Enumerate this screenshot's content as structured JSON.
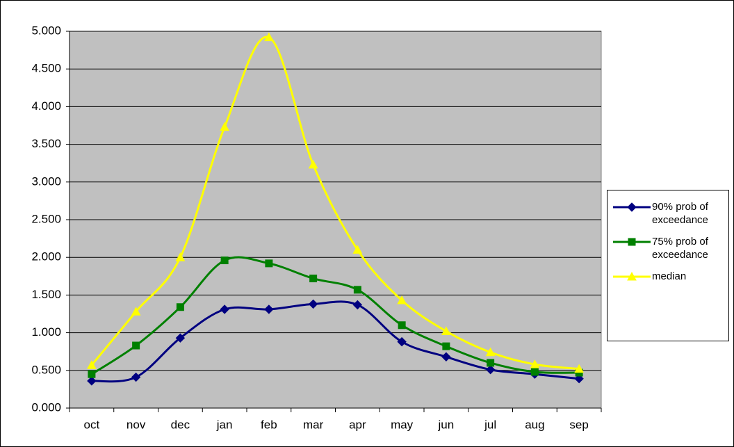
{
  "chart_data": {
    "type": "line",
    "categories": [
      "oct",
      "nov",
      "dec",
      "jan",
      "feb",
      "mar",
      "apr",
      "may",
      "jun",
      "jul",
      "aug",
      "sep"
    ],
    "series": [
      {
        "name": "90% prob of exceedance",
        "color": "#000080",
        "marker": "diamond",
        "values": [
          0.36,
          0.41,
          0.93,
          1.31,
          1.31,
          1.38,
          1.37,
          0.88,
          0.68,
          0.51,
          0.45,
          0.39
        ]
      },
      {
        "name": "75% prob of exceedance",
        "color": "#008000",
        "marker": "square",
        "values": [
          0.45,
          0.83,
          1.34,
          1.96,
          1.92,
          1.72,
          1.57,
          1.1,
          0.82,
          0.6,
          0.48,
          0.47
        ]
      },
      {
        "name": "median",
        "color": "#ffff00",
        "marker": "triangle",
        "values": [
          0.57,
          1.28,
          2.0,
          3.73,
          4.92,
          3.23,
          2.1,
          1.43,
          1.02,
          0.74,
          0.58,
          0.52
        ]
      }
    ],
    "ylim": [
      0,
      5
    ],
    "yticks": [
      {
        "value": 0,
        "label": "0.000"
      },
      {
        "value": 0.5,
        "label": "0.500"
      },
      {
        "value": 1,
        "label": "1.000"
      },
      {
        "value": 1.5,
        "label": "1.500"
      },
      {
        "value": 2,
        "label": "2.000"
      },
      {
        "value": 2.5,
        "label": "2.500"
      },
      {
        "value": 3,
        "label": "3.000"
      },
      {
        "value": 3.5,
        "label": "3.500"
      },
      {
        "value": 4,
        "label": "4.000"
      },
      {
        "value": 4.5,
        "label": "4.500"
      },
      {
        "value": 5,
        "label": "5.000"
      }
    ],
    "grid": true,
    "smooth": true,
    "plot_background": "#c0c0c0",
    "legend": "right"
  }
}
